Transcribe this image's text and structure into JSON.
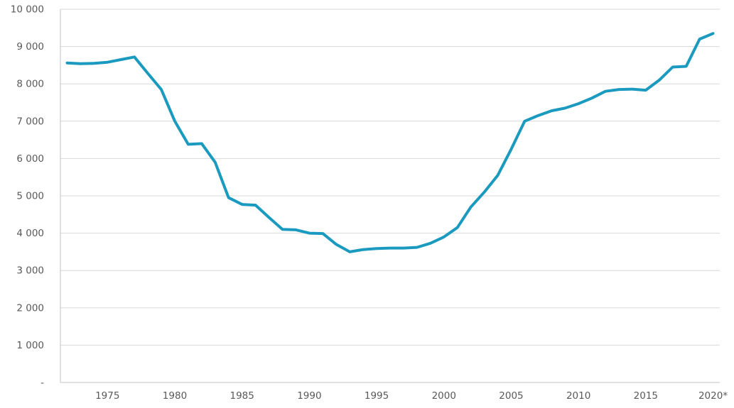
{
  "chart_data": {
    "type": "line",
    "title": "",
    "xlabel": "",
    "ylabel": "",
    "legend": "none",
    "grid": true,
    "ylim": [
      0,
      10000
    ],
    "y_tick_step": 1000,
    "x": [
      1972,
      1973,
      1974,
      1975,
      1976,
      1977,
      1978,
      1979,
      1980,
      1981,
      1982,
      1983,
      1984,
      1985,
      1986,
      1987,
      1988,
      1989,
      1990,
      1991,
      1992,
      1993,
      1994,
      1995,
      1996,
      1997,
      1998,
      1999,
      2000,
      2001,
      2002,
      2003,
      2004,
      2005,
      2006,
      2007,
      2008,
      2009,
      2010,
      2011,
      2012,
      2013,
      2014,
      2015,
      2016,
      2017,
      2018,
      2019,
      2020
    ],
    "values": [
      8560,
      8540,
      8550,
      8580,
      8650,
      8720,
      8280,
      7850,
      7000,
      6380,
      6400,
      5900,
      4950,
      4770,
      4750,
      4420,
      4100,
      4090,
      4000,
      3990,
      3700,
      3500,
      3560,
      3590,
      3600,
      3600,
      3620,
      3730,
      3900,
      4150,
      4700,
      5100,
      5550,
      6250,
      7000,
      7150,
      7280,
      7350,
      7470,
      7620,
      7800,
      7850,
      7860,
      7830,
      8100,
      8450,
      8470,
      9200,
      9350
    ],
    "x_ticks": [
      {
        "year": 1975,
        "label": "1975"
      },
      {
        "year": 1980,
        "label": "1980"
      },
      {
        "year": 1985,
        "label": "1985"
      },
      {
        "year": 1990,
        "label": "1990"
      },
      {
        "year": 1995,
        "label": "1995"
      },
      {
        "year": 2000,
        "label": "2000"
      },
      {
        "year": 2005,
        "label": "2005"
      },
      {
        "year": 2010,
        "label": "2010"
      },
      {
        "year": 2015,
        "label": "2015"
      },
      {
        "year": 2020,
        "label": "2020*"
      }
    ],
    "y_ticks": [
      {
        "value": 0,
        "label": "-"
      },
      {
        "value": 1000,
        "label": "1 000"
      },
      {
        "value": 2000,
        "label": "2 000"
      },
      {
        "value": 3000,
        "label": "3 000"
      },
      {
        "value": 4000,
        "label": "4 000"
      },
      {
        "value": 5000,
        "label": "5 000"
      },
      {
        "value": 6000,
        "label": "6 000"
      },
      {
        "value": 7000,
        "label": "7 000"
      },
      {
        "value": 8000,
        "label": "8 000"
      },
      {
        "value": 9000,
        "label": "9 000"
      },
      {
        "value": 10000,
        "label": "10 000"
      }
    ],
    "colors": {
      "line": "#1b9ac0",
      "grid": "#d9d9d9",
      "axis_line": "#c3c3c3",
      "tick_text": "#595959",
      "background": "#ffffff"
    }
  }
}
